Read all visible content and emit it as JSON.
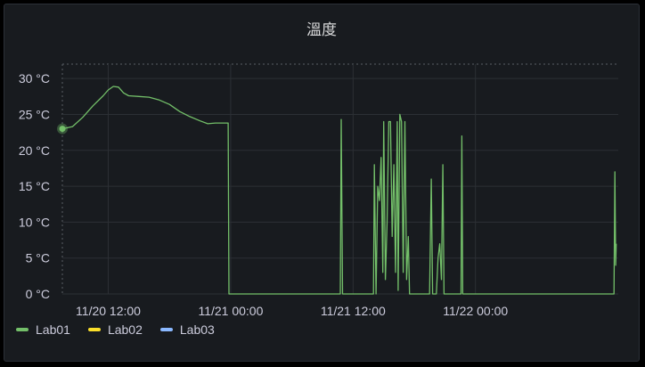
{
  "panel": {
    "title": "溫度"
  },
  "colors": {
    "background": "#181b1f",
    "grid": "#2c3035",
    "text": "#ccccdc"
  },
  "chart_data": {
    "type": "line",
    "title": "溫度",
    "xlabel": "",
    "ylabel": "",
    "ylim": [
      0,
      32
    ],
    "xlim": [
      "2023-11-20T07:30",
      "2023-11-22T14:00"
    ],
    "y_ticks": [
      "0 °C",
      "5 °C",
      "10 °C",
      "15 °C",
      "20 °C",
      "25 °C",
      "30 °C"
    ],
    "y_tick_values": [
      0,
      5,
      10,
      15,
      20,
      25,
      30
    ],
    "x_ticks": [
      "11/20 12:00",
      "11/21 00:00",
      "11/21 12:00",
      "11/22 00:00"
    ],
    "x_tick_values": [
      "2023-11-20T12:00",
      "2023-11-21T00:00",
      "2023-11-21T12:00",
      "2023-11-22T00:00"
    ],
    "grid": true,
    "legend_position": "bottom-left",
    "series": [
      {
        "name": "Lab01",
        "color": "#73bf69",
        "points": [
          [
            "2023-11-20T07:30",
            23
          ],
          [
            "2023-11-20T08:30",
            23.3
          ],
          [
            "2023-11-20T09:30",
            24.6
          ],
          [
            "2023-11-20T10:30",
            26.2
          ],
          [
            "2023-11-20T11:30",
            27.6
          ],
          [
            "2023-11-20T12:00",
            28.4
          ],
          [
            "2023-11-20T12:30",
            28.9
          ],
          [
            "2023-11-20T13:00",
            28.8
          ],
          [
            "2023-11-20T13:30",
            28
          ],
          [
            "2023-11-20T14:00",
            27.6
          ],
          [
            "2023-11-20T15:00",
            27.5
          ],
          [
            "2023-11-20T16:00",
            27.4
          ],
          [
            "2023-11-20T17:00",
            27
          ],
          [
            "2023-11-20T18:00",
            26.4
          ],
          [
            "2023-11-20T19:00",
            25.4
          ],
          [
            "2023-11-20T20:00",
            24.7
          ],
          [
            "2023-11-20T21:00",
            24.1
          ],
          [
            "2023-11-20T21:45",
            23.7
          ],
          [
            "2023-11-20T22:30",
            23.8
          ],
          [
            "2023-11-20T23:30",
            23.8
          ],
          [
            "2023-11-20T23:45",
            23.8
          ],
          [
            "2023-11-20T23:50",
            0
          ],
          [
            "2023-11-21T10:45",
            0
          ],
          [
            "2023-11-21T10:50",
            24.3
          ],
          [
            "2023-11-21T10:58",
            0
          ],
          [
            "2023-11-21T14:00",
            0
          ],
          [
            "2023-11-21T14:05",
            18
          ],
          [
            "2023-11-21T14:15",
            0
          ],
          [
            "2023-11-21T14:25",
            15
          ],
          [
            "2023-11-21T14:35",
            13
          ],
          [
            "2023-11-21T14:45",
            19
          ],
          [
            "2023-11-21T14:55",
            3
          ],
          [
            "2023-11-21T15:00",
            24
          ],
          [
            "2023-11-21T15:10",
            2
          ],
          [
            "2023-11-21T15:20",
            10
          ],
          [
            "2023-11-21T15:30",
            24
          ],
          [
            "2023-11-21T15:40",
            24
          ],
          [
            "2023-11-21T15:50",
            8
          ],
          [
            "2023-11-21T16:00",
            18
          ],
          [
            "2023-11-21T16:10",
            3
          ],
          [
            "2023-11-21T16:20",
            24
          ],
          [
            "2023-11-21T16:25",
            0.5
          ],
          [
            "2023-11-21T16:35",
            25
          ],
          [
            "2023-11-21T16:45",
            24
          ],
          [
            "2023-11-21T16:55",
            3
          ],
          [
            "2023-11-21T17:05",
            24
          ],
          [
            "2023-11-21T17:15",
            2
          ],
          [
            "2023-11-21T17:25",
            8
          ],
          [
            "2023-11-21T17:32",
            0
          ],
          [
            "2023-11-21T19:30",
            0
          ],
          [
            "2023-11-21T19:40",
            16
          ],
          [
            "2023-11-21T19:48",
            0
          ],
          [
            "2023-11-21T20:10",
            0
          ],
          [
            "2023-11-21T20:20",
            5
          ],
          [
            "2023-11-21T20:30",
            7
          ],
          [
            "2023-11-21T20:40",
            2
          ],
          [
            "2023-11-21T20:48",
            18
          ],
          [
            "2023-11-21T20:55",
            0
          ],
          [
            "2023-11-21T22:35",
            0
          ],
          [
            "2023-11-21T22:40",
            22
          ],
          [
            "2023-11-21T22:45",
            0
          ],
          [
            "2023-11-22T13:35",
            0
          ],
          [
            "2023-11-22T13:40",
            17
          ],
          [
            "2023-11-22T13:45",
            4
          ],
          [
            "2023-11-22T13:48",
            7
          ]
        ]
      },
      {
        "name": "Lab02",
        "color": "#fade2a",
        "points": []
      },
      {
        "name": "Lab03",
        "color": "#8ab8ff",
        "points": []
      }
    ]
  }
}
